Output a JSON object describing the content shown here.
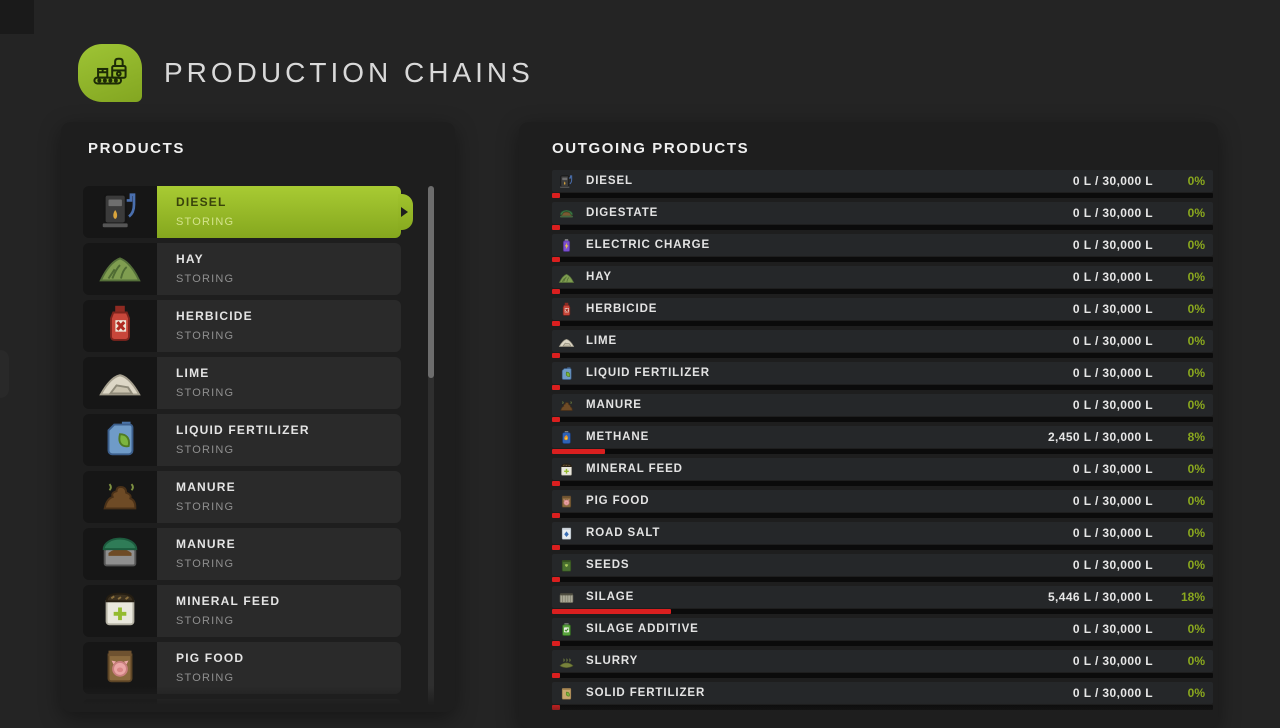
{
  "header": {
    "title": "PRODUCTION CHAINS",
    "icon": "production-chains"
  },
  "colors": {
    "accent_green": "#96ba24",
    "percent_green": "#8aa81e",
    "progress_red": "#da1f1f"
  },
  "products_panel": {
    "title": "PRODUCTS",
    "items": [
      {
        "name": "DIESEL",
        "status": "STORING",
        "icon": "diesel",
        "selected": true
      },
      {
        "name": "HAY",
        "status": "STORING",
        "icon": "hay",
        "selected": false
      },
      {
        "name": "HERBICIDE",
        "status": "STORING",
        "icon": "herbicide",
        "selected": false
      },
      {
        "name": "LIME",
        "status": "STORING",
        "icon": "lime",
        "selected": false
      },
      {
        "name": "LIQUID FERTILIZER",
        "status": "STORING",
        "icon": "liquid-fertilizer",
        "selected": false
      },
      {
        "name": "MANURE",
        "status": "STORING",
        "icon": "manure",
        "selected": false
      },
      {
        "name": "MANURE",
        "status": "STORING",
        "icon": "manure-covered",
        "selected": false
      },
      {
        "name": "MINERAL FEED",
        "status": "STORING",
        "icon": "mineral-feed",
        "selected": false
      },
      {
        "name": "PIG FOOD",
        "status": "STORING",
        "icon": "pig-food",
        "selected": false
      }
    ],
    "partial_next_item_visible": true,
    "scrollbar": {
      "thumb_top_percent": 0,
      "thumb_height_percent": 37
    }
  },
  "outgoing_panel": {
    "title": "OUTGOING PRODUCTS",
    "rows": [
      {
        "name": "DIESEL",
        "icon": "diesel",
        "amount": "0 L / 30,000 L",
        "percent": "0%",
        "fill_percent": 0
      },
      {
        "name": "DIGESTATE",
        "icon": "digestate",
        "amount": "0 L / 30,000 L",
        "percent": "0%",
        "fill_percent": 0
      },
      {
        "name": "ELECTRIC CHARGE",
        "icon": "electric-charge",
        "amount": "0 L / 30,000 L",
        "percent": "0%",
        "fill_percent": 0
      },
      {
        "name": "HAY",
        "icon": "hay",
        "amount": "0 L / 30,000 L",
        "percent": "0%",
        "fill_percent": 0
      },
      {
        "name": "HERBICIDE",
        "icon": "herbicide",
        "amount": "0 L / 30,000 L",
        "percent": "0%",
        "fill_percent": 0
      },
      {
        "name": "LIME",
        "icon": "lime",
        "amount": "0 L / 30,000 L",
        "percent": "0%",
        "fill_percent": 0
      },
      {
        "name": "LIQUID FERTILIZER",
        "icon": "liquid-fertilizer",
        "amount": "0 L / 30,000 L",
        "percent": "0%",
        "fill_percent": 0
      },
      {
        "name": "MANURE",
        "icon": "manure",
        "amount": "0 L / 30,000 L",
        "percent": "0%",
        "fill_percent": 0
      },
      {
        "name": "METHANE",
        "icon": "methane",
        "amount": "2,450 L / 30,000 L",
        "percent": "8%",
        "fill_percent": 8
      },
      {
        "name": "MINERAL FEED",
        "icon": "mineral-feed",
        "amount": "0 L / 30,000 L",
        "percent": "0%",
        "fill_percent": 0
      },
      {
        "name": "PIG FOOD",
        "icon": "pig-food",
        "amount": "0 L / 30,000 L",
        "percent": "0%",
        "fill_percent": 0
      },
      {
        "name": "ROAD SALT",
        "icon": "road-salt",
        "amount": "0 L / 30,000 L",
        "percent": "0%",
        "fill_percent": 0
      },
      {
        "name": "SEEDS",
        "icon": "seeds",
        "amount": "0 L / 30,000 L",
        "percent": "0%",
        "fill_percent": 0
      },
      {
        "name": "SILAGE",
        "icon": "silage",
        "amount": "5,446 L / 30,000 L",
        "percent": "18%",
        "fill_percent": 18
      },
      {
        "name": "SILAGE ADDITIVE",
        "icon": "silage-additive",
        "amount": "0 L / 30,000 L",
        "percent": "0%",
        "fill_percent": 0
      },
      {
        "name": "SLURRY",
        "icon": "slurry",
        "amount": "0 L / 30,000 L",
        "percent": "0%",
        "fill_percent": 0
      },
      {
        "name": "SOLID FERTILIZER",
        "icon": "solid-fertilizer",
        "amount": "0 L / 30,000 L",
        "percent": "0%",
        "fill_percent": 0
      }
    ]
  }
}
